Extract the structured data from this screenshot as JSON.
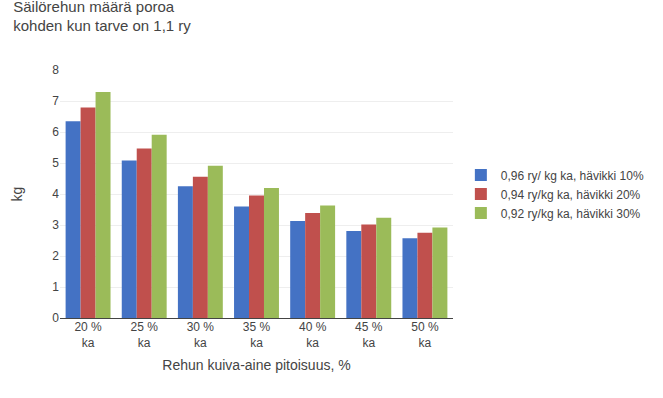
{
  "chart_data": {
    "type": "bar",
    "title": "Säilörehun määrä poroa\nkohden kun tarve on 1,1 ry",
    "xlabel": "Rehun kuiva-aine pitoisuus, %",
    "ylabel": "kg",
    "categories": [
      "20 %\nka",
      "25 %\nka",
      "30 %\nka",
      "35 %\nka",
      "40 %\nka",
      "45 %\nka",
      "50 %\nka"
    ],
    "series": [
      {
        "name": "0,96 ry/ kg ka, hävikki 10%",
        "color": "#4472C4",
        "values": [
          6.35,
          5.08,
          4.25,
          3.6,
          3.13,
          2.81,
          2.57
        ]
      },
      {
        "name": "0,94 ry/kg ka, hävikki 20%",
        "color": "#C0504D",
        "values": [
          6.79,
          5.47,
          4.56,
          3.95,
          3.39,
          3.02,
          2.75
        ]
      },
      {
        "name": "0,92 ry/kg ka, hävikki 30%",
        "color": "#9BBB59",
        "values": [
          7.29,
          5.91,
          4.91,
          4.19,
          3.63,
          3.23,
          2.92
        ]
      }
    ],
    "ylim": [
      0,
      8
    ],
    "yticks": [
      0,
      1,
      2,
      3,
      4,
      5,
      6,
      7,
      8
    ],
    "grid": true,
    "legend": "right"
  }
}
